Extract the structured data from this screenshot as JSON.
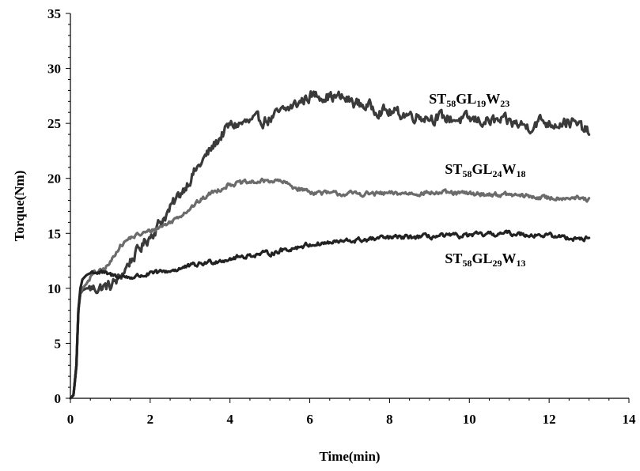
{
  "chart_data": {
    "type": "line",
    "title": "",
    "xlabel": "Time(min)",
    "ylabel": "Torque(Nm)",
    "xlim": [
      0,
      14
    ],
    "ylim": [
      0,
      35
    ],
    "xticks": [
      0,
      2,
      4,
      6,
      8,
      10,
      12,
      14
    ],
    "yticks": [
      0,
      5,
      10,
      15,
      20,
      25,
      30,
      35
    ],
    "grid": false,
    "series": [
      {
        "name": "ST58GL19W23",
        "label_parts": [
          [
            "ST",
            false
          ],
          [
            "58",
            true
          ],
          [
            "GL",
            false
          ],
          [
            "19",
            true
          ],
          [
            "W",
            false
          ],
          [
            "23",
            true
          ]
        ],
        "label_anchor": [
          10.0,
          26.8
        ],
        "color": "#3a3a3a",
        "noise": 0.45,
        "x": [
          0,
          0.08,
          0.15,
          0.2,
          0.25,
          0.3,
          0.4,
          0.6,
          0.8,
          1.0,
          1.2,
          1.5,
          2.0,
          2.5,
          3.0,
          3.5,
          3.8,
          4.0,
          4.5,
          5.0,
          5.5,
          6.0,
          6.3,
          6.8,
          7.2,
          8.0,
          9.0,
          10.0,
          11.0,
          11.5,
          11.8,
          12.0,
          12.5,
          13.0
        ],
        "y": [
          0,
          0.3,
          3,
          8,
          9.5,
          9.8,
          10,
          10,
          10.1,
          10.2,
          10.8,
          12.5,
          14.8,
          17.2,
          20,
          22.5,
          24,
          24.8,
          25.1,
          25.4,
          26.4,
          27.5,
          27.6,
          27.3,
          26.8,
          26.0,
          25.6,
          25.3,
          25.1,
          24.7,
          25.3,
          25.0,
          25.2,
          24.2
        ]
      },
      {
        "name": "ST58GL24W18",
        "label_parts": [
          [
            "ST",
            false
          ],
          [
            "58",
            true
          ],
          [
            "GL",
            false
          ],
          [
            "24",
            true
          ],
          [
            "W",
            false
          ],
          [
            "18",
            true
          ]
        ],
        "label_anchor": [
          10.4,
          20.4
        ],
        "color": "#6b6b6b",
        "noise": 0.18,
        "x": [
          0,
          0.08,
          0.15,
          0.2,
          0.25,
          0.3,
          0.4,
          0.5,
          0.6,
          0.8,
          1.0,
          1.2,
          1.5,
          2.0,
          2.5,
          3.0,
          3.5,
          4.0,
          4.5,
          5.0,
          5.3,
          5.6,
          6.0,
          6.5,
          7.0,
          8.0,
          9.0,
          10.0,
          11.0,
          12.0,
          12.5,
          13.0
        ],
        "y": [
          0,
          0.3,
          3,
          8,
          9.6,
          10,
          10.4,
          11,
          11.4,
          11.6,
          12.3,
          13.7,
          14.6,
          15.2,
          16.0,
          17.3,
          18.6,
          19.5,
          19.6,
          19.8,
          19.7,
          19.2,
          18.8,
          18.6,
          18.6,
          18.6,
          18.7,
          18.6,
          18.5,
          18.2,
          18.3,
          18.0
        ]
      },
      {
        "name": "ST58GL29W13",
        "label_parts": [
          [
            "ST",
            false
          ],
          [
            "58",
            true
          ],
          [
            "GL",
            false
          ],
          [
            "29",
            true
          ],
          [
            "W",
            false
          ],
          [
            "13",
            true
          ]
        ],
        "label_anchor": [
          10.4,
          12.3
        ],
        "color": "#222222",
        "noise": 0.18,
        "x": [
          0,
          0.08,
          0.15,
          0.2,
          0.25,
          0.3,
          0.4,
          0.5,
          0.6,
          0.8,
          1.0,
          1.5,
          2.0,
          2.5,
          3.0,
          3.5,
          4.0,
          4.5,
          5.0,
          5.5,
          6.0,
          7.0,
          8.0,
          9.0,
          10.0,
          11.0,
          12.0,
          12.5,
          13.0
        ],
        "y": [
          0,
          0.3,
          3,
          8,
          10,
          10.8,
          11.2,
          11.4,
          11.5,
          11.4,
          11.2,
          11.0,
          11.3,
          11.6,
          12.0,
          12.4,
          12.7,
          13.0,
          13.2,
          13.6,
          14.0,
          14.3,
          14.6,
          14.7,
          14.8,
          15.0,
          14.8,
          14.6,
          14.5
        ]
      }
    ]
  }
}
